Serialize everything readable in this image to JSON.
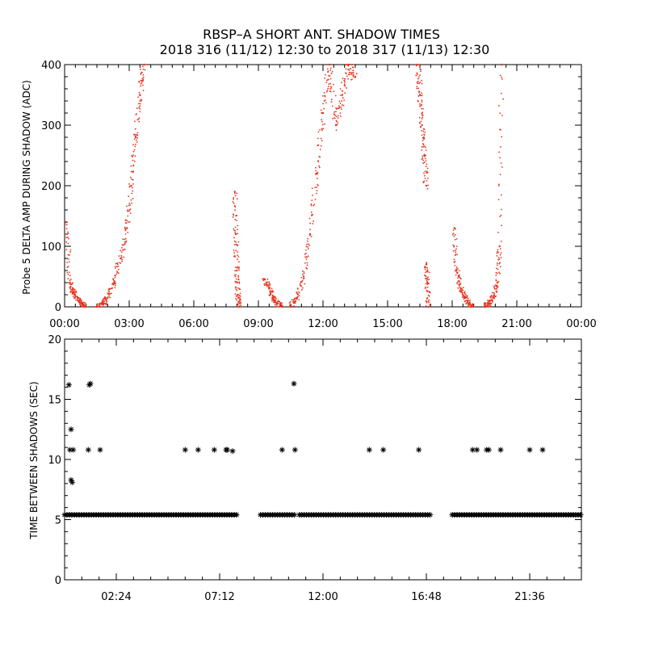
{
  "title_line1": "RBSP–A SHORT ANT. SHADOW TIMES",
  "title_line2": "2018 316 (11/12) 12:30 to 2018 317 (11/13) 12:30",
  "colors": {
    "top_points": "#e8321e",
    "bottom_points": "#000000"
  },
  "chart_data": [
    {
      "type": "scatter",
      "panel": "top",
      "ylabel": "Probe 5 DELTA AMP DURING SHADOW (ADC)",
      "xlabel": "",
      "x_unit": "hours",
      "xlim": [
        0,
        24
      ],
      "ylim": [
        0,
        400
      ],
      "x_tick_values": [
        0,
        3,
        6,
        9,
        12,
        15,
        18,
        21,
        24
      ],
      "x_tick_labels": [
        "00:00",
        "03:00",
        "06:00",
        "09:00",
        "12:00",
        "15:00",
        "18:00",
        "21:00",
        "00:00"
      ],
      "y_tick_values": [
        0,
        100,
        200,
        300,
        400
      ],
      "y_tick_labels": [
        "0",
        "100",
        "200",
        "300",
        "400"
      ],
      "marker": "dot",
      "segments": [
        {
          "x": [
            0.1,
            0.25,
            0.4,
            0.6,
            0.8,
            0.95
          ],
          "y": [
            140,
            40,
            25,
            15,
            5,
            0
          ]
        },
        {
          "x": [
            1.5,
            1.8,
            2.0,
            2.3,
            2.6,
            2.9,
            3.1,
            3.3,
            3.5,
            3.7
          ],
          "y": [
            0,
            5,
            15,
            40,
            80,
            130,
            200,
            280,
            350,
            400
          ]
        },
        {
          "x": [
            7.9,
            7.95,
            8.0,
            8.05,
            8.1
          ],
          "y": [
            190,
            120,
            60,
            20,
            0
          ]
        },
        {
          "x": [
            9.3,
            9.5,
            9.7,
            9.9,
            10.1
          ],
          "y": [
            45,
            30,
            15,
            5,
            0
          ]
        },
        {
          "x": [
            10.5,
            10.8,
            11.1,
            11.4,
            11.7,
            12.0,
            12.3,
            12.6,
            12.9,
            13.2,
            13.5
          ],
          "y": [
            0,
            15,
            50,
            120,
            220,
            320,
            400,
            300,
            350,
            400,
            380
          ]
        },
        {
          "x": [
            16.4,
            16.5,
            16.6,
            16.7,
            16.8
          ],
          "y": [
            400,
            350,
            300,
            250,
            200
          ]
        },
        {
          "x": [
            16.8,
            16.85,
            16.9
          ],
          "y": [
            70,
            40,
            0
          ]
        },
        {
          "x": [
            18.1,
            18.2,
            18.4,
            18.6,
            18.8,
            19.0
          ],
          "y": [
            130,
            60,
            30,
            15,
            5,
            0
          ]
        },
        {
          "x": [
            19.5,
            19.7,
            19.9,
            20.1,
            20.2,
            20.3
          ],
          "y": [
            0,
            5,
            15,
            40,
            100,
            400
          ]
        }
      ]
    },
    {
      "type": "scatter",
      "panel": "bottom",
      "ylabel": "TIME BETWEEN SHADOWS (SEC)",
      "xlabel": "",
      "x_unit": "hours",
      "xlim": [
        0,
        24
      ],
      "ylim": [
        0,
        20
      ],
      "x_tick_values": [
        2.4,
        7.2,
        12.0,
        16.8,
        21.6
      ],
      "x_tick_labels": [
        "02:24",
        "07:12",
        "12:00",
        "16:48",
        "21:36"
      ],
      "y_tick_values": [
        0,
        5,
        10,
        15,
        20
      ],
      "y_tick_labels": [
        "0",
        "5",
        "10",
        "15",
        "20"
      ],
      "marker": "asterisk",
      "baseline_y": 5.4,
      "baseline_ranges": [
        [
          0.0,
          8.0
        ],
        [
          9.1,
          10.7
        ],
        [
          10.9,
          17.0
        ],
        [
          18.0,
          24.0
        ]
      ],
      "points": {
        "x": [
          0.2,
          0.25,
          0.3,
          0.3,
          0.35,
          0.4,
          1.1,
          1.15,
          1.2,
          1.65,
          5.6,
          6.2,
          6.95,
          7.5,
          7.55,
          7.8,
          10.1,
          10.65,
          10.7,
          14.15,
          14.8,
          16.45,
          18.95,
          19.15,
          19.6,
          19.7,
          20.25,
          21.6,
          22.2
        ],
        "y": [
          16.2,
          10.8,
          12.5,
          8.3,
          8.1,
          10.8,
          10.8,
          16.2,
          16.3,
          10.8,
          10.8,
          10.8,
          10.8,
          10.8,
          10.8,
          10.7,
          10.8,
          16.3,
          10.8,
          10.8,
          10.8,
          10.8,
          10.8,
          10.8,
          10.8,
          10.8,
          10.8,
          10.8,
          10.8
        ]
      }
    }
  ]
}
